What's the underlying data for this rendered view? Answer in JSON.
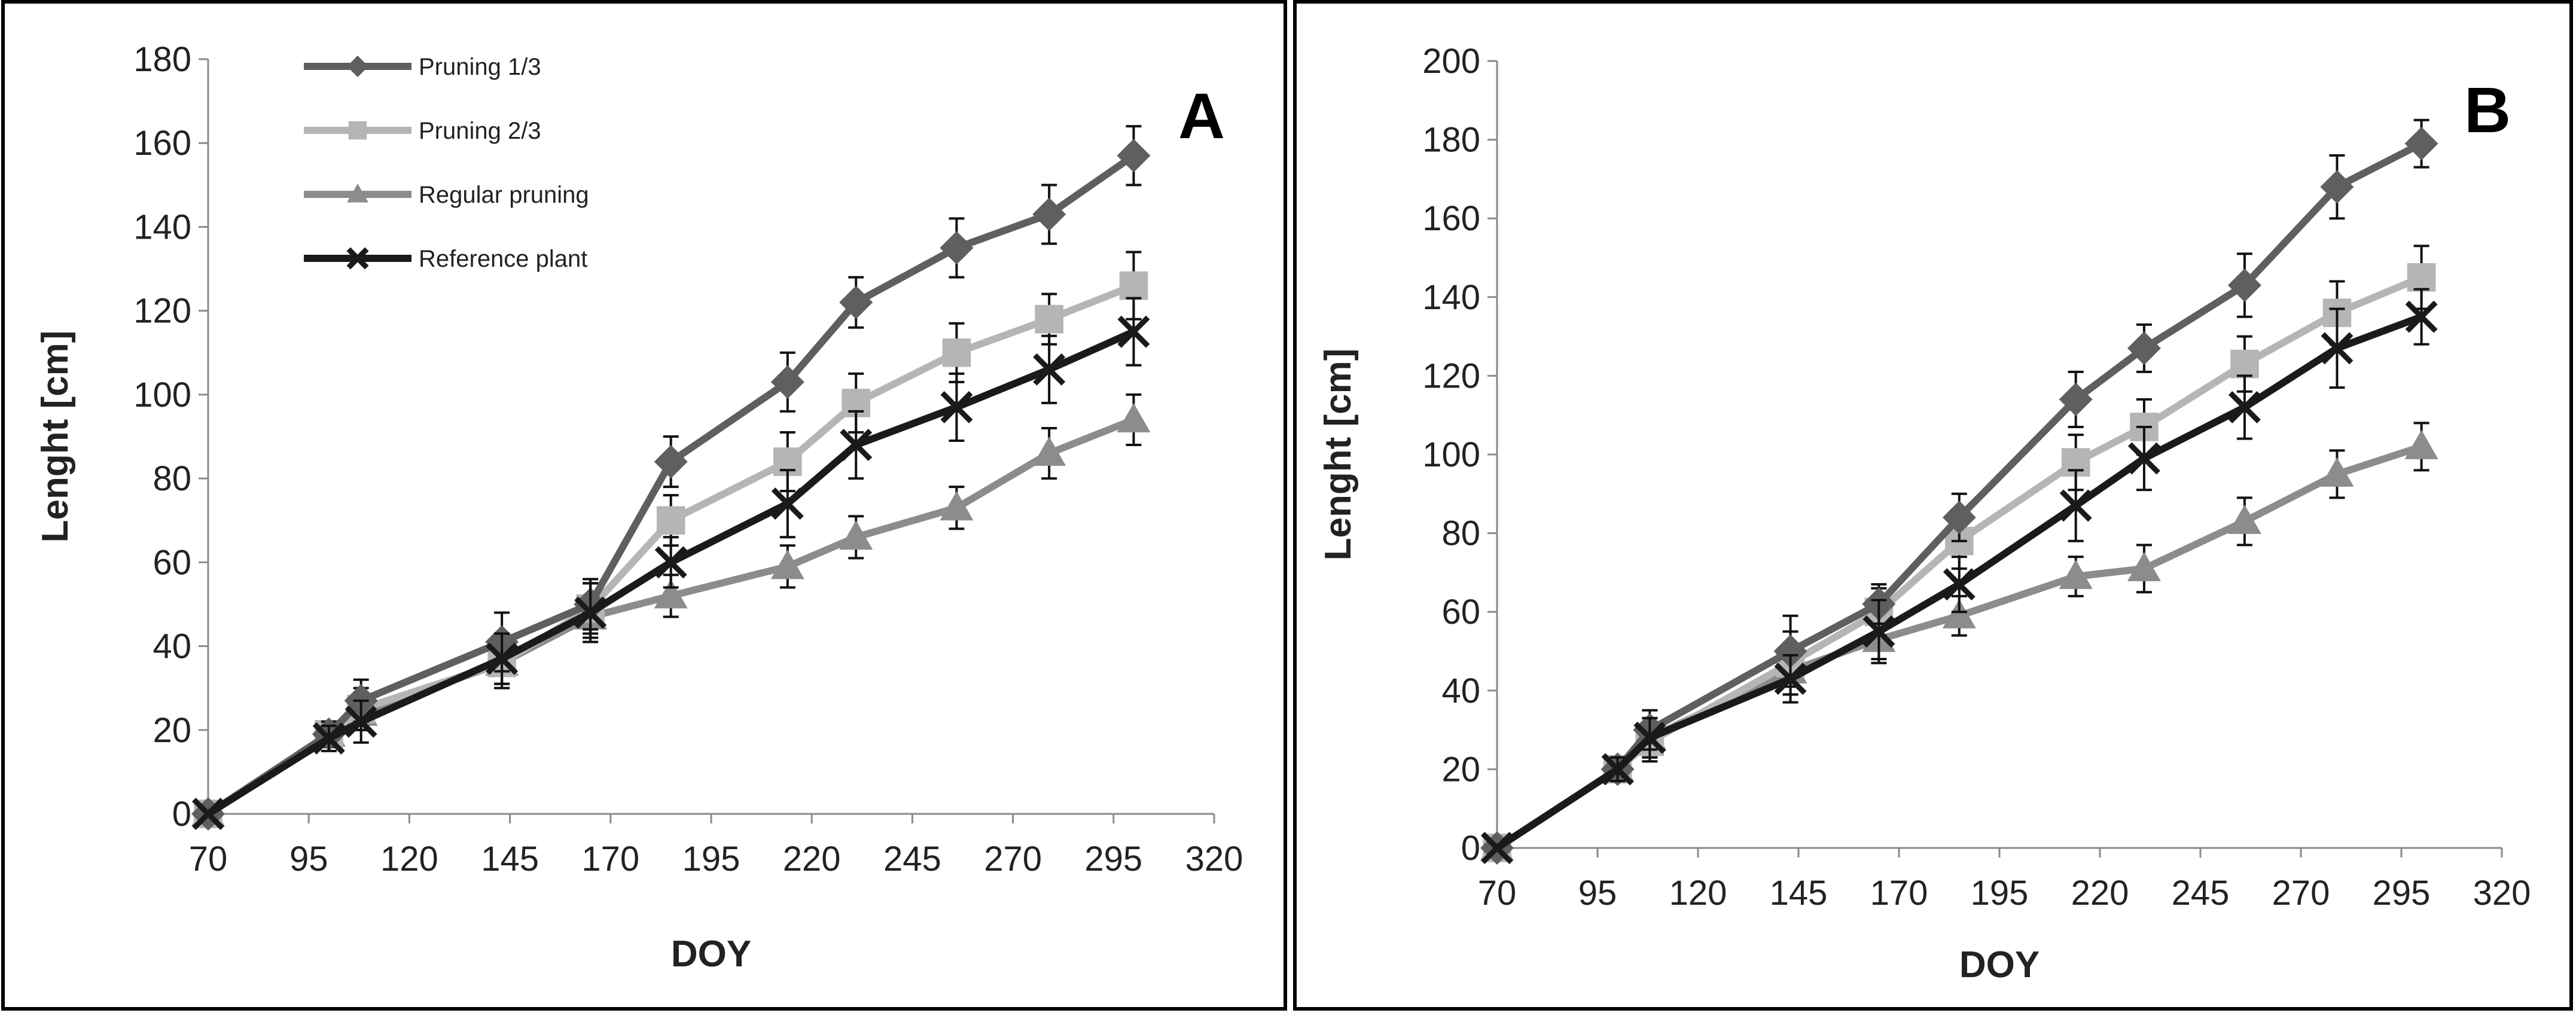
{
  "figure": {
    "panels": [
      "A",
      "B"
    ]
  },
  "chart_data": [
    {
      "type": "line",
      "panel_label": "A",
      "xlabel": "DOY",
      "ylabel": "Lenght [cm]",
      "xlim": [
        70,
        320
      ],
      "ylim": [
        0,
        180
      ],
      "xticks": [
        70,
        95,
        120,
        145,
        170,
        195,
        220,
        245,
        270,
        295,
        320
      ],
      "yticks": [
        0,
        20,
        40,
        60,
        80,
        100,
        120,
        140,
        160,
        180
      ],
      "x": [
        70,
        100,
        108,
        143,
        165,
        185,
        214,
        231,
        256,
        279,
        300
      ],
      "legend_position": "top-left",
      "series": [
        {
          "name": "Pruning 1/3",
          "marker": "diamond",
          "color": "#5f5f5f",
          "values": [
            0,
            19,
            27,
            41,
            50,
            84,
            103,
            122,
            135,
            143,
            157
          ],
          "errors": [
            0,
            3,
            5,
            7,
            6,
            6,
            7,
            6,
            7,
            7,
            7
          ]
        },
        {
          "name": "Pruning 2/3",
          "marker": "square",
          "color": "#b5b5b5",
          "values": [
            0,
            19,
            25,
            36,
            49,
            70,
            84,
            98,
            110,
            118,
            126
          ],
          "errors": [
            0,
            3,
            5,
            6,
            6,
            6,
            7,
            7,
            7,
            6,
            8
          ]
        },
        {
          "name": "Regular pruning",
          "marker": "triangle",
          "color": "#8c8c8c",
          "values": [
            0,
            19,
            24,
            36,
            47,
            52,
            59,
            66,
            73,
            86,
            94
          ],
          "errors": [
            0,
            3,
            4,
            5,
            5,
            5,
            5,
            5,
            5,
            6,
            6
          ]
        },
        {
          "name": "Reference plant",
          "marker": "x",
          "color": "#1a1a1a",
          "values": [
            0,
            18,
            22,
            37,
            48,
            60,
            74,
            88,
            97,
            106,
            115
          ],
          "errors": [
            0,
            3,
            5,
            6,
            7,
            6,
            8,
            8,
            8,
            8,
            8
          ]
        }
      ]
    },
    {
      "type": "line",
      "panel_label": "B",
      "xlabel": "DOY",
      "ylabel": "Lenght [cm]",
      "xlim": [
        70,
        320
      ],
      "ylim": [
        0,
        200
      ],
      "xticks": [
        70,
        95,
        120,
        145,
        170,
        195,
        220,
        245,
        270,
        295,
        320
      ],
      "yticks": [
        0,
        20,
        40,
        60,
        80,
        100,
        120,
        140,
        160,
        180,
        200
      ],
      "x": [
        70,
        100,
        108,
        143,
        165,
        185,
        214,
        231,
        256,
        279,
        300
      ],
      "series": [
        {
          "name": "Pruning 1/3",
          "marker": "diamond",
          "color": "#5f5f5f",
          "values": [
            0,
            20,
            30,
            50,
            62,
            84,
            114,
            127,
            143,
            168,
            179
          ],
          "errors": [
            0,
            3,
            5,
            9,
            5,
            6,
            7,
            6,
            8,
            8,
            6
          ]
        },
        {
          "name": "Pruning 2/3",
          "marker": "square",
          "color": "#b5b5b5",
          "values": [
            0,
            20,
            27,
            47,
            60,
            78,
            98,
            107,
            123,
            136,
            145
          ],
          "errors": [
            0,
            3,
            5,
            8,
            6,
            7,
            7,
            7,
            7,
            8,
            8
          ]
        },
        {
          "name": "Regular pruning",
          "marker": "triangle",
          "color": "#8c8c8c",
          "values": [
            0,
            20,
            28,
            45,
            53,
            59,
            69,
            71,
            83,
            95,
            102
          ],
          "errors": [
            0,
            3,
            5,
            6,
            5,
            5,
            5,
            6,
            6,
            6,
            6
          ]
        },
        {
          "name": "Reference plant",
          "marker": "x",
          "color": "#1a1a1a",
          "values": [
            0,
            20,
            28,
            43,
            55,
            67,
            87,
            99,
            112,
            127,
            135
          ],
          "errors": [
            0,
            3,
            5,
            6,
            8,
            7,
            9,
            8,
            8,
            10,
            7
          ]
        }
      ]
    }
  ]
}
